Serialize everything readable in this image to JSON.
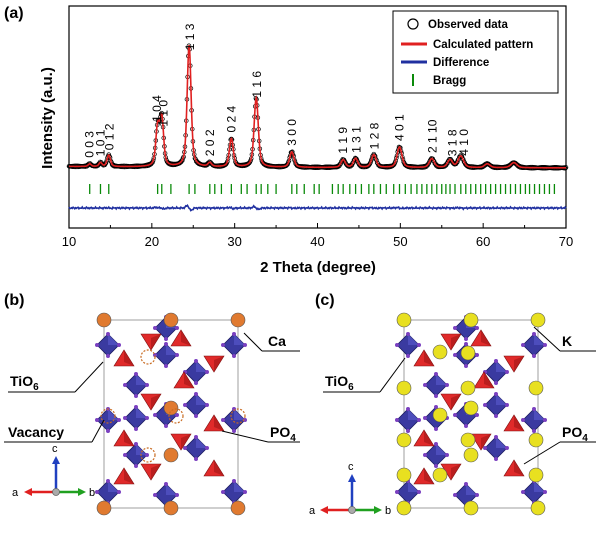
{
  "panels": {
    "a": "(a)",
    "b": "(b)",
    "c": "(c)"
  },
  "chart_data": {
    "type": "line",
    "title": "",
    "xlabel": "2 Theta (degree)",
    "ylabel": "Intensity (a.u.)",
    "xlim": [
      10,
      70
    ],
    "xticks": [
      "10",
      "20",
      "30",
      "40",
      "50",
      "60",
      "70"
    ],
    "legend": {
      "position": "top-right",
      "entries": [
        {
          "label": "Observed data",
          "color": "#000000",
          "marker": "open-circle"
        },
        {
          "label": "Calculated pattern",
          "color": "#e02020",
          "marker": "line"
        },
        {
          "label": "Difference",
          "color": "#2030a0",
          "marker": "line"
        },
        {
          "label": "Bragg",
          "color": "#0a8a0a",
          "marker": "tick"
        }
      ]
    },
    "peaks": [
      {
        "x": 12.5,
        "height": 0.02,
        "width": 0.25
      },
      {
        "x": 13.8,
        "height": 0.03,
        "width": 0.25
      },
      {
        "x": 14.8,
        "height": 0.09,
        "width": 0.28
      },
      {
        "x": 20.7,
        "height": 0.3,
        "width": 0.3
      },
      {
        "x": 21.2,
        "height": 0.37,
        "width": 0.3
      },
      {
        "x": 24.5,
        "height": 0.95,
        "width": 0.32
      },
      {
        "x": 27.0,
        "height": 0.03,
        "width": 0.3
      },
      {
        "x": 29.6,
        "height": 0.22,
        "width": 0.32
      },
      {
        "x": 32.6,
        "height": 0.54,
        "width": 0.34
      },
      {
        "x": 36.9,
        "height": 0.12,
        "width": 0.35
      },
      {
        "x": 43.1,
        "height": 0.06,
        "width": 0.35
      },
      {
        "x": 44.6,
        "height": 0.07,
        "width": 0.35
      },
      {
        "x": 46.8,
        "height": 0.1,
        "width": 0.38
      },
      {
        "x": 49.9,
        "height": 0.16,
        "width": 0.4
      },
      {
        "x": 53.8,
        "height": 0.07,
        "width": 0.4
      },
      {
        "x": 56.0,
        "height": 0.06,
        "width": 0.4
      },
      {
        "x": 57.3,
        "height": 0.09,
        "width": 0.45
      },
      {
        "x": 60.5,
        "height": 0.03,
        "width": 0.45
      },
      {
        "x": 63.7,
        "height": 0.04,
        "width": 0.5
      }
    ],
    "background": 0.05,
    "bragg_positions": [
      12.5,
      13.8,
      14.8,
      20.7,
      21.2,
      22.3,
      24.5,
      25.2,
      27.0,
      27.6,
      28.4,
      29.6,
      30.8,
      31.5,
      32.6,
      33.2,
      34.0,
      35.0,
      36.9,
      37.5,
      38.4,
      39.6,
      40.2,
      41.8,
      42.5,
      43.1,
      43.9,
      44.6,
      45.3,
      46.2,
      46.8,
      47.6,
      48.3,
      49.2,
      49.9,
      50.6,
      51.3,
      52.0,
      52.6,
      53.2,
      53.8,
      54.4,
      55.0,
      55.5,
      56.0,
      56.6,
      57.3,
      57.9,
      58.5,
      59.1,
      59.7,
      60.3,
      60.9,
      61.5,
      62.1,
      62.7,
      63.3,
      63.9,
      64.5,
      65.1,
      65.6,
      66.2,
      66.8,
      67.4,
      68.0,
      68.6
    ],
    "hkl_labels": [
      {
        "x": 12.5,
        "text": "0 0 3"
      },
      {
        "x": 13.8,
        "text": "1 0 1"
      },
      {
        "x": 14.9,
        "text": "0 1 2"
      },
      {
        "x": 20.6,
        "text": "1 0 4"
      },
      {
        "x": 21.4,
        "text": "1 1 0"
      },
      {
        "x": 24.6,
        "text": "1 1 3"
      },
      {
        "x": 27.0,
        "text": "2 0 2"
      },
      {
        "x": 29.6,
        "text": "0 2 4"
      },
      {
        "x": 32.7,
        "text": "1 1 6"
      },
      {
        "x": 36.9,
        "text": "3 0 0"
      },
      {
        "x": 43.1,
        "text": "1 1 9"
      },
      {
        "x": 44.7,
        "text": "1 3 1"
      },
      {
        "x": 46.9,
        "text": "1 2 8"
      },
      {
        "x": 49.9,
        "text": "4 0 1"
      },
      {
        "x": 53.9,
        "text": "2 1 10"
      },
      {
        "x": 56.3,
        "text": "3 1 8"
      },
      {
        "x": 57.7,
        "text": "4 1 0"
      }
    ]
  },
  "structures": {
    "b": {
      "labels": {
        "tio6": "TiO",
        "tio6_sub": "6",
        "cation": "Ca",
        "vacancy": "Vacancy",
        "po4": "PO",
        "po4_sub": "4"
      },
      "axes": {
        "c": "c",
        "a": "a",
        "b": "b"
      },
      "colors": {
        "cation": "#e07a30",
        "octahedron": "#3a3aa0",
        "tetrahedron": "#e02a2a",
        "oxygen": "#7a40c0"
      }
    },
    "c": {
      "labels": {
        "tio6": "TiO",
        "tio6_sub": "6",
        "cation": "K",
        "po4": "PO",
        "po4_sub": "4"
      },
      "axes": {
        "c": "c",
        "a": "a",
        "b": "b"
      },
      "colors": {
        "cation": "#e8e020",
        "octahedron": "#3a3aa0",
        "tetrahedron": "#e02a2a",
        "oxygen": "#7a40c0"
      }
    }
  }
}
